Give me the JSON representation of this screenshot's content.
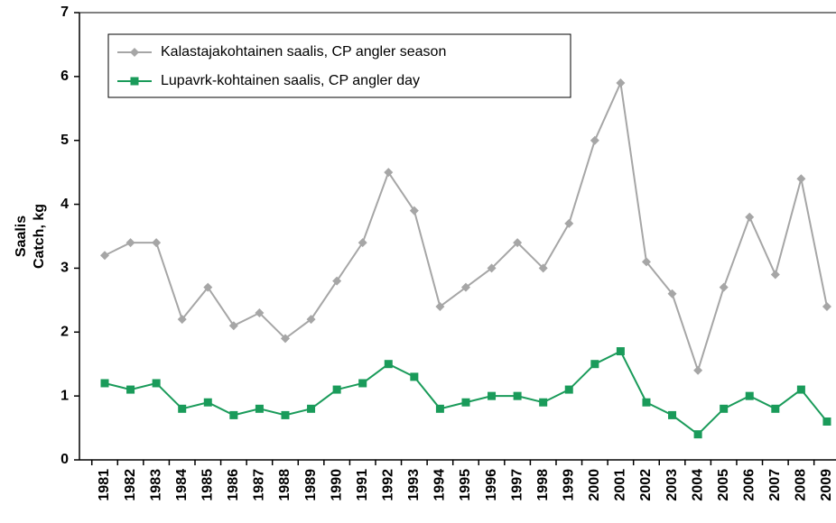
{
  "chart_data": {
    "type": "line",
    "ylabel": [
      "Saalis",
      "Catch, kg"
    ],
    "categories": [
      "1981",
      "1982",
      "1983",
      "1984",
      "1985",
      "1986",
      "1987",
      "1988",
      "1989",
      "1990",
      "1991",
      "1992",
      "1993",
      "1994",
      "1995",
      "1996",
      "1997",
      "1998",
      "1999",
      "2000",
      "2001",
      "2002",
      "2003",
      "2004",
      "2005",
      "2006",
      "2007",
      "2008",
      "2009"
    ],
    "series": [
      {
        "name": "Kalastajakohtainen saalis, CP angler season",
        "color": "#a6a6a6",
        "marker": "diamond",
        "values": [
          3.2,
          3.4,
          3.4,
          2.2,
          2.7,
          2.1,
          2.3,
          1.9,
          2.2,
          2.8,
          3.4,
          4.5,
          3.9,
          2.4,
          2.7,
          3.0,
          3.4,
          3.0,
          3.7,
          5.0,
          5.9,
          3.1,
          2.6,
          1.4,
          2.7,
          3.8,
          2.9,
          4.4,
          2.4
        ]
      },
      {
        "name": "Lupavrk-kohtainen saalis, CP angler day",
        "color": "#1a9b5a",
        "marker": "square",
        "values": [
          1.2,
          1.1,
          1.2,
          0.8,
          0.9,
          0.7,
          0.8,
          0.7,
          0.8,
          1.1,
          1.2,
          1.5,
          1.3,
          0.8,
          0.9,
          1.0,
          1.0,
          0.9,
          1.1,
          1.5,
          1.7,
          0.9,
          0.7,
          0.4,
          0.8,
          1.0,
          0.8,
          1.1,
          0.6
        ]
      }
    ],
    "ylim": [
      0,
      7
    ],
    "yticks": [
      0,
      1,
      2,
      3,
      4,
      5,
      6,
      7
    ],
    "grid": false
  }
}
